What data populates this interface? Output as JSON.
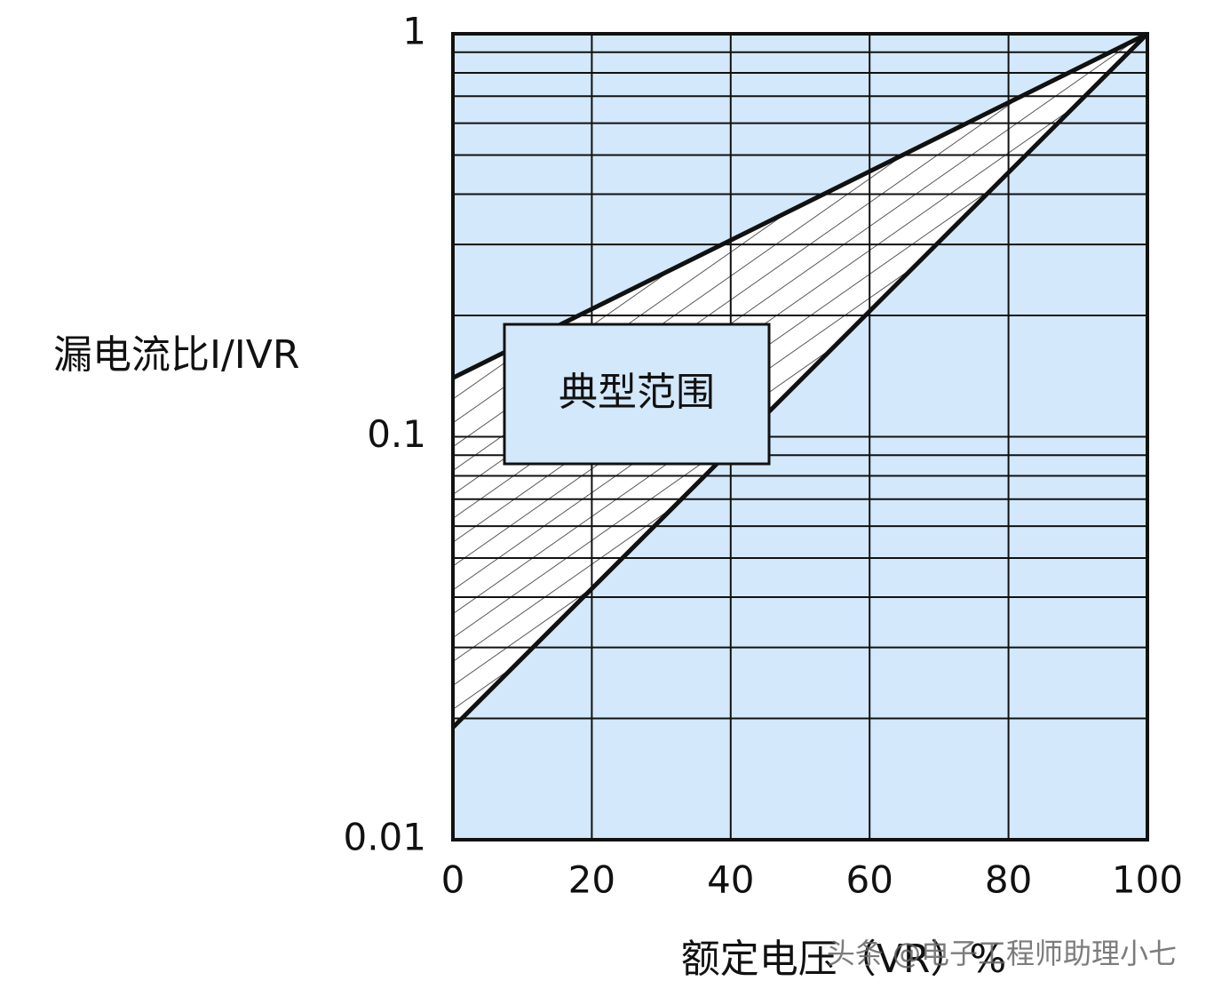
{
  "chart_data": {
    "type": "line",
    "y_label": "漏电流比I/IVR",
    "x_label": "额定电压（VR）%",
    "annotation": "典型范围",
    "watermark": "头条 @电子工程师助理小七",
    "x": [
      0,
      100
    ],
    "series": [
      {
        "color": "#111111",
        "values": [
          0.14,
          1
        ]
      },
      {
        "color": "#111111",
        "values": [
          0.019,
          1
        ]
      }
    ],
    "xlim": [
      0,
      100
    ],
    "xticks": [
      0,
      20,
      40,
      60,
      80,
      100
    ],
    "ylim": [
      0.01,
      1
    ],
    "yticks": [
      0.01,
      0.1,
      1
    ],
    "log_y": true,
    "grid": true,
    "plot_color": "#d3e8fa"
  }
}
